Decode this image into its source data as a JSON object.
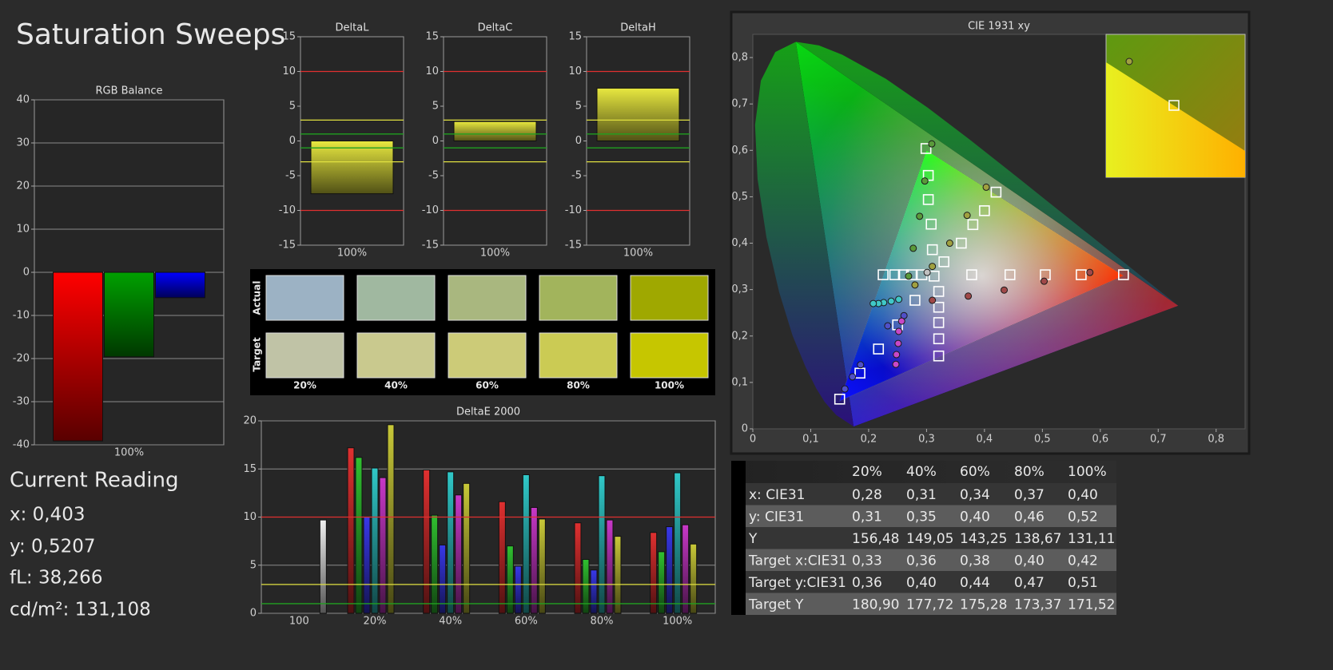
{
  "title": "Saturation Sweeps",
  "current_reading": {
    "title": "Current Reading",
    "lines": [
      "x: 0,403",
      "y: 0,5207",
      "fL: 38,266",
      "cd/m²: 131,108"
    ]
  },
  "swatches": {
    "row_labels": [
      "Actual",
      "Target"
    ],
    "columns": [
      "20%",
      "40%",
      "60%",
      "80%",
      "100%"
    ],
    "actual": [
      "#9cb2c4",
      "#a0b8a0",
      "#a9b77f",
      "#a2b45c",
      "#9fa800"
    ],
    "target": [
      "#c0c3a6",
      "#c9c98e",
      "#cccb78",
      "#cbcb54",
      "#c6c600"
    ]
  },
  "table": {
    "header": [
      "20%",
      "40%",
      "60%",
      "80%",
      "100%"
    ],
    "rows": [
      [
        "x: CIE31",
        "0,28",
        "0,31",
        "0,34",
        "0,37",
        "0,40"
      ],
      [
        "y: CIE31",
        "0,31",
        "0,35",
        "0,40",
        "0,46",
        "0,52"
      ],
      [
        "Y",
        "156,48",
        "149,05",
        "143,25",
        "138,67",
        "131,11"
      ],
      [
        "Target x:CIE31",
        "0,33",
        "0,36",
        "0,38",
        "0,40",
        "0,42"
      ],
      [
        "Target y:CIE31",
        "0,36",
        "0,40",
        "0,44",
        "0,47",
        "0,51"
      ],
      [
        "Target Y",
        "180,90",
        "177,72",
        "175,28",
        "173,37",
        "171,52"
      ]
    ]
  },
  "chart_data": [
    {
      "type": "bar",
      "title": "RGB Balance",
      "categories": [
        "100%"
      ],
      "series": [
        {
          "color": "#ff0000",
          "values": [
            -39.1
          ]
        },
        {
          "color": "#00a000",
          "values": [
            -19.6
          ]
        },
        {
          "color": "#0000ff",
          "values": [
            -5.9
          ]
        }
      ],
      "ylim": [
        -40,
        40
      ],
      "yticks": [
        -40,
        -30,
        -20,
        -10,
        0,
        10,
        20,
        30,
        40
      ],
      "grid": true
    },
    {
      "type": "bar",
      "title": "DeltaL",
      "categories": [
        "100%"
      ],
      "values": [
        -7.6
      ],
      "color": "#e8e840",
      "ylim": [
        -15,
        15
      ],
      "yticks": [
        -15,
        -10,
        -5,
        0,
        5,
        10,
        15
      ],
      "grid": false,
      "reference_lines": [
        {
          "value": 10,
          "color": "#e03030"
        },
        {
          "value": -10,
          "color": "#e03030"
        },
        {
          "value": 3,
          "color": "#e0e040"
        },
        {
          "value": -3,
          "color": "#e0e040"
        },
        {
          "value": 1,
          "color": "#20a020"
        },
        {
          "value": -1,
          "color": "#20a020"
        }
      ]
    },
    {
      "type": "bar",
      "title": "DeltaC",
      "categories": [
        "100%"
      ],
      "values": [
        2.8
      ],
      "color": "#e8e840",
      "ylim": [
        -15,
        15
      ],
      "yticks": [
        -15,
        -10,
        -5,
        0,
        5,
        10,
        15
      ],
      "grid": false,
      "reference_lines": [
        {
          "value": 10,
          "color": "#e03030"
        },
        {
          "value": -10,
          "color": "#e03030"
        },
        {
          "value": 3,
          "color": "#e0e040"
        },
        {
          "value": -3,
          "color": "#e0e040"
        },
        {
          "value": 1,
          "color": "#20a020"
        },
        {
          "value": -1,
          "color": "#20a020"
        }
      ]
    },
    {
      "type": "bar",
      "title": "DeltaH",
      "categories": [
        "100%"
      ],
      "values": [
        7.6
      ],
      "color": "#e8e840",
      "ylim": [
        -15,
        15
      ],
      "yticks": [
        -15,
        -10,
        -5,
        0,
        5,
        10,
        15
      ],
      "grid": false,
      "reference_lines": [
        {
          "value": 10,
          "color": "#e03030"
        },
        {
          "value": -10,
          "color": "#e03030"
        },
        {
          "value": 3,
          "color": "#e0e040"
        },
        {
          "value": -3,
          "color": "#e0e040"
        },
        {
          "value": 1,
          "color": "#20a020"
        },
        {
          "value": -1,
          "color": "#20a020"
        }
      ]
    },
    {
      "type": "bar",
      "title": "DeltaE 2000",
      "categories": [
        "100",
        "20%",
        "40%",
        "60%",
        "80%",
        "100%"
      ],
      "series": [
        {
          "color": "#e03030",
          "values": [
            null,
            17.2,
            14.9,
            11.6,
            9.4,
            8.4
          ]
        },
        {
          "color": "#30c030",
          "values": [
            null,
            16.2,
            10.2,
            7.0,
            5.6,
            6.4
          ]
        },
        {
          "color": "#3838e8",
          "values": [
            null,
            10.0,
            7.1,
            4.9,
            4.5,
            9.0
          ]
        },
        {
          "color": "#30c8c8",
          "values": [
            null,
            15.1,
            14.7,
            14.4,
            14.3,
            14.6
          ]
        },
        {
          "color": "#c838c8",
          "values": [
            null,
            14.1,
            12.3,
            11.0,
            9.7,
            9.2
          ]
        },
        {
          "color": "#c8c838",
          "values": [
            null,
            19.6,
            13.5,
            9.8,
            8.0,
            7.2
          ]
        },
        {
          "color": "#f0f0f0",
          "values": [
            9.7,
            null,
            null,
            null,
            null,
            null
          ]
        }
      ],
      "ylim": [
        0,
        20
      ],
      "yticks": [
        0,
        5,
        10,
        15,
        20
      ],
      "grid": true,
      "reference_lines": [
        {
          "value": 10,
          "color": "#e03030"
        },
        {
          "value": 3,
          "color": "#e0e040"
        },
        {
          "value": 1,
          "color": "#20a020"
        }
      ]
    },
    {
      "type": "scatter",
      "title": "CIE 1931 xy",
      "xlim": [
        0,
        0.85
      ],
      "ylim": [
        0,
        0.85
      ],
      "xticks": [
        0,
        {
          "value": 0.1,
          "label": "0,1"
        },
        {
          "value": 0.2,
          "label": "0,2"
        },
        {
          "value": 0.3,
          "label": "0,3"
        },
        {
          "value": 0.4,
          "label": "0,4"
        },
        {
          "value": 0.5,
          "label": "0,5"
        },
        {
          "value": 0.6,
          "label": "0,6"
        },
        {
          "value": 0.7,
          "label": "0,7"
        },
        {
          "value": 0.8,
          "label": "0,8"
        }
      ],
      "yticks": [
        0,
        {
          "value": 0.1,
          "label": "0,1"
        },
        {
          "value": 0.2,
          "label": "0,2"
        },
        {
          "value": 0.3,
          "label": "0,3"
        },
        {
          "value": 0.4,
          "label": "0,4"
        },
        {
          "value": 0.5,
          "label": "0,5"
        },
        {
          "value": 0.6,
          "label": "0,6"
        },
        {
          "value": 0.7,
          "label": "0,7"
        },
        {
          "value": 0.8,
          "label": "0,8"
        }
      ],
      "locus_x": [
        0.1741,
        0.144,
        0.1241,
        0.1096,
        0.0913,
        0.0687,
        0.0454,
        0.0235,
        0.0082,
        0.0039,
        0.0139,
        0.0389,
        0.0743,
        0.1142,
        0.1547,
        0.2296,
        0.3016,
        0.3731,
        0.4441,
        0.5125,
        0.5752,
        0.627,
        0.6915,
        0.7347
      ],
      "locus_y": [
        0.005,
        0.0297,
        0.0578,
        0.0868,
        0.1327,
        0.2007,
        0.295,
        0.4127,
        0.5384,
        0.6548,
        0.7502,
        0.812,
        0.8338,
        0.8262,
        0.8059,
        0.7543,
        0.6923,
        0.6245,
        0.5547,
        0.4866,
        0.4242,
        0.3725,
        0.3083,
        0.2653
      ],
      "gamut_x": [
        0.64,
        0.3,
        0.15
      ],
      "gamut_y": [
        0.33,
        0.6,
        0.06
      ],
      "series": [
        {
          "marker": "square",
          "color": "#ffffff",
          "x": [
            0.378,
            0.444,
            0.505,
            0.567,
            0.64
          ],
          "y": [
            0.332,
            0.332,
            0.332,
            0.332,
            0.332
          ]
        },
        {
          "marker": "square",
          "color": "#ffffff",
          "x": [
            0.31,
            0.308,
            0.303,
            0.303,
            0.299
          ],
          "y": [
            0.386,
            0.441,
            0.494,
            0.546,
            0.604
          ]
        },
        {
          "marker": "square",
          "color": "#ffffff",
          "x": [
            0.28,
            0.25,
            0.217,
            0.185,
            0.15
          ],
          "y": [
            0.277,
            0.224,
            0.172,
            0.12,
            0.064
          ]
        },
        {
          "marker": "square",
          "color": "#ffffff",
          "x": [
            0.292,
            0.274,
            0.26,
            0.245,
            0.225
          ],
          "y": [
            0.332,
            0.332,
            0.332,
            0.332,
            0.332
          ]
        },
        {
          "marker": "square",
          "color": "#ffffff",
          "x": [
            0.321,
            0.321,
            0.321,
            0.321,
            0.321
          ],
          "y": [
            0.296,
            0.262,
            0.229,
            0.194,
            0.157
          ]
        },
        {
          "marker": "square",
          "color": "#ffffff",
          "x": [
            0.33,
            0.36,
            0.38,
            0.4,
            0.42
          ],
          "y": [
            0.36,
            0.4,
            0.44,
            0.47,
            0.51
          ]
        },
        {
          "marker": "square",
          "color": "#ffffff",
          "x": [
            0.313
          ],
          "y": [
            0.329
          ]
        },
        {
          "marker": "circle",
          "color": "#a04848",
          "x": [
            0.31,
            0.372,
            0.434,
            0.503,
            0.582
          ],
          "y": [
            0.277,
            0.286,
            0.299,
            0.318,
            0.337
          ]
        },
        {
          "marker": "circle",
          "color": "#5a9a3a",
          "x": [
            0.269,
            0.277,
            0.288,
            0.297,
            0.309
          ],
          "y": [
            0.329,
            0.389,
            0.458,
            0.534,
            0.614
          ]
        },
        {
          "marker": "circle",
          "color": "#5050c8",
          "x": [
            0.261,
            0.233,
            0.186,
            0.172,
            0.159
          ],
          "y": [
            0.244,
            0.222,
            0.138,
            0.112,
            0.086
          ]
        },
        {
          "marker": "circle",
          "color": "#40c8c8",
          "x": [
            0.252,
            0.239,
            0.226,
            0.217,
            0.208
          ],
          "y": [
            0.279,
            0.275,
            0.272,
            0.27,
            0.27
          ]
        },
        {
          "marker": "circle",
          "color": "#c848c8",
          "x": [
            0.257,
            0.252,
            0.251,
            0.248,
            0.247
          ],
          "y": [
            0.232,
            0.21,
            0.184,
            0.16,
            0.139
          ]
        },
        {
          "marker": "circle",
          "color": "#a0a040",
          "x": [
            0.28,
            0.31,
            0.34,
            0.37,
            0.403
          ],
          "y": [
            0.31,
            0.35,
            0.4,
            0.46,
            0.5207
          ]
        },
        {
          "marker": "circle",
          "color": "#c0c0c0",
          "x": [
            0.301
          ],
          "y": [
            0.337
          ]
        }
      ]
    }
  ]
}
